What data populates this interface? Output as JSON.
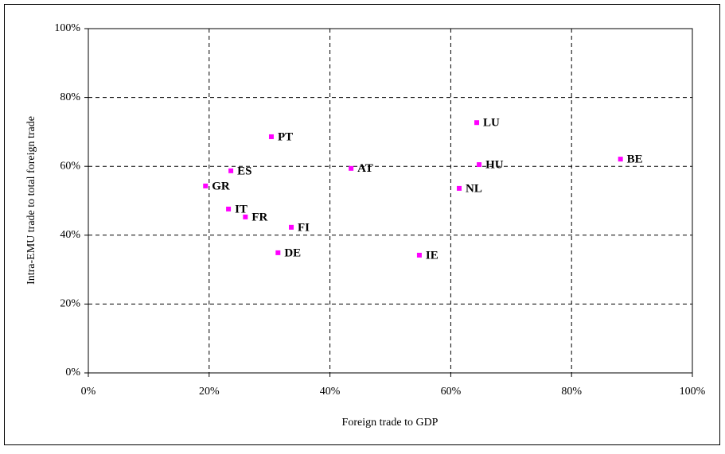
{
  "chart_data": {
    "type": "scatter",
    "xlabel": "Foreign trade to GDP",
    "ylabel": "Intra-EMU trade to total foreign trade",
    "labels": [
      "PT",
      "LU",
      "HU",
      "BE",
      "NL",
      "IE",
      "AT",
      "FI",
      "DE",
      "FR",
      "IT",
      "ES",
      "GR"
    ],
    "x": [
      30.3,
      64.3,
      64.7,
      88.1,
      61.4,
      54.8,
      43.5,
      33.6,
      31.4,
      26.0,
      23.2,
      23.6,
      19.4
    ],
    "values": [
      68.6,
      72.7,
      60.5,
      62.1,
      53.6,
      34.2,
      59.4,
      42.3,
      34.9,
      45.3,
      47.6,
      58.7,
      54.3
    ],
    "color": "#ff00ff",
    "xlim": [
      0,
      100
    ],
    "ylim": [
      0,
      100
    ],
    "xticks": [
      {
        "value": 0,
        "label": "0%"
      },
      {
        "value": 20,
        "label": "20%"
      },
      {
        "value": 40,
        "label": "40%"
      },
      {
        "value": 60,
        "label": "60%"
      },
      {
        "value": 80,
        "label": "80%"
      },
      {
        "value": 100,
        "label": "100%"
      }
    ],
    "yticks": [
      {
        "value": 0,
        "label": "0%"
      },
      {
        "value": 20,
        "label": "20%"
      },
      {
        "value": 40,
        "label": "40%"
      },
      {
        "value": 60,
        "label": "60%"
      },
      {
        "value": 80,
        "label": "80%"
      },
      {
        "value": 100,
        "label": "100%"
      }
    ],
    "grid": true
  }
}
